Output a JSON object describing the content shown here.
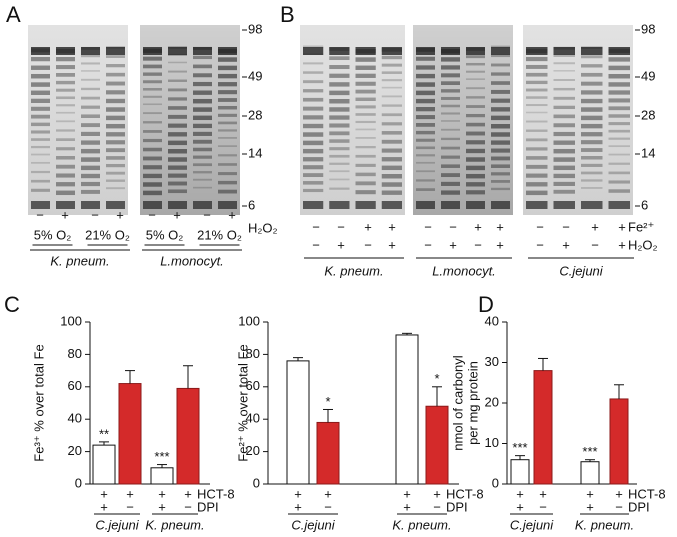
{
  "panels": [
    "A",
    "B",
    "C",
    "D"
  ],
  "blots": {
    "A": {
      "marker_labels": [
        98,
        49,
        28,
        14,
        6
      ],
      "row_labels": [
        "H₂O₂"
      ],
      "groups": [
        {
          "name": "K. pneum.",
          "signs": [
            "−",
            "+",
            "−",
            "+"
          ],
          "conditions": [
            "5% O₂",
            "21% O₂"
          ]
        },
        {
          "name": "L.monocyt.",
          "signs": [
            "−",
            "+",
            "−",
            "+"
          ],
          "conditions": [
            "5% O₂",
            "21% O₂"
          ]
        }
      ]
    },
    "B": {
      "marker_labels": [
        98,
        49,
        28,
        14,
        6
      ],
      "row_labels": [
        "Fe²⁺",
        "H₂O₂"
      ],
      "groups": [
        {
          "name": "K. pneum.",
          "rows": [
            [
              "−",
              "−",
              "+",
              "+"
            ],
            [
              "−",
              "+",
              "−",
              "+"
            ]
          ]
        },
        {
          "name": "L.monocyt.",
          "rows": [
            [
              "−",
              "−",
              "+",
              "+"
            ],
            [
              "−",
              "+",
              "−",
              "+"
            ]
          ]
        },
        {
          "name": "C.jejuni",
          "rows": [
            [
              "−",
              "−",
              "+",
              "+"
            ],
            [
              "−",
              "+",
              "−",
              "+"
            ]
          ]
        }
      ]
    }
  },
  "chart_data": [
    {
      "type": "bar",
      "y_label": [
        "Fe³⁺ % over total Fe"
      ],
      "values": [
        24,
        62,
        10,
        59
      ],
      "errors": [
        2,
        8,
        2,
        14
      ],
      "colors": [
        "#ffffff",
        "#d42a2a",
        "#ffffff",
        "#d42a2a"
      ],
      "annotations": [
        "**",
        null,
        "***",
        null
      ],
      "ylim": [
        0,
        100
      ],
      "yticks": [
        0,
        20,
        40,
        60,
        80,
        100
      ],
      "row_labels": [
        "HCT-8",
        "DPI"
      ],
      "rows": [
        [
          "+",
          "+",
          "+",
          "+"
        ],
        [
          "+",
          "−",
          "+",
          "−"
        ]
      ],
      "groups": [
        "C.jejuni",
        "K. pneum."
      ]
    },
    {
      "type": "bar",
      "y_label": [
        "Fe²⁺ % over total Fe"
      ],
      "values": [
        76,
        38,
        92,
        48
      ],
      "errors": [
        2,
        8,
        1,
        12
      ],
      "colors": [
        "#ffffff",
        "#d42a2a",
        "#ffffff",
        "#d42a2a"
      ],
      "annotations": [
        null,
        "*",
        null,
        "*"
      ],
      "ylim": [
        0,
        100
      ],
      "yticks": [
        0,
        20,
        40,
        60,
        80,
        100
      ],
      "row_labels": [
        "HCT-8",
        "DPI"
      ],
      "rows": [
        [
          "+",
          "+",
          "+",
          "+"
        ],
        [
          "+",
          "−",
          "+",
          "−"
        ]
      ],
      "groups": [
        "C.jejuni",
        "K. pneum."
      ]
    },
    {
      "type": "bar",
      "y_label": [
        "nmol of carbonyl",
        "per mg protein"
      ],
      "values": [
        6,
        28,
        5.5,
        21
      ],
      "errors": [
        1,
        3,
        0.5,
        3.5
      ],
      "colors": [
        "#ffffff",
        "#d42a2a",
        "#ffffff",
        "#d42a2a"
      ],
      "annotations": [
        "***",
        null,
        "***",
        null
      ],
      "ylim": [
        0,
        40
      ],
      "yticks": [
        0,
        10,
        20,
        30,
        40
      ],
      "row_labels": [
        "HCT-8",
        "DPI"
      ],
      "rows": [
        [
          "+",
          "+",
          "+",
          "+"
        ],
        [
          "+",
          "−",
          "+",
          "−"
        ]
      ],
      "groups": [
        "C.jejuni",
        "K. pneum."
      ]
    }
  ]
}
